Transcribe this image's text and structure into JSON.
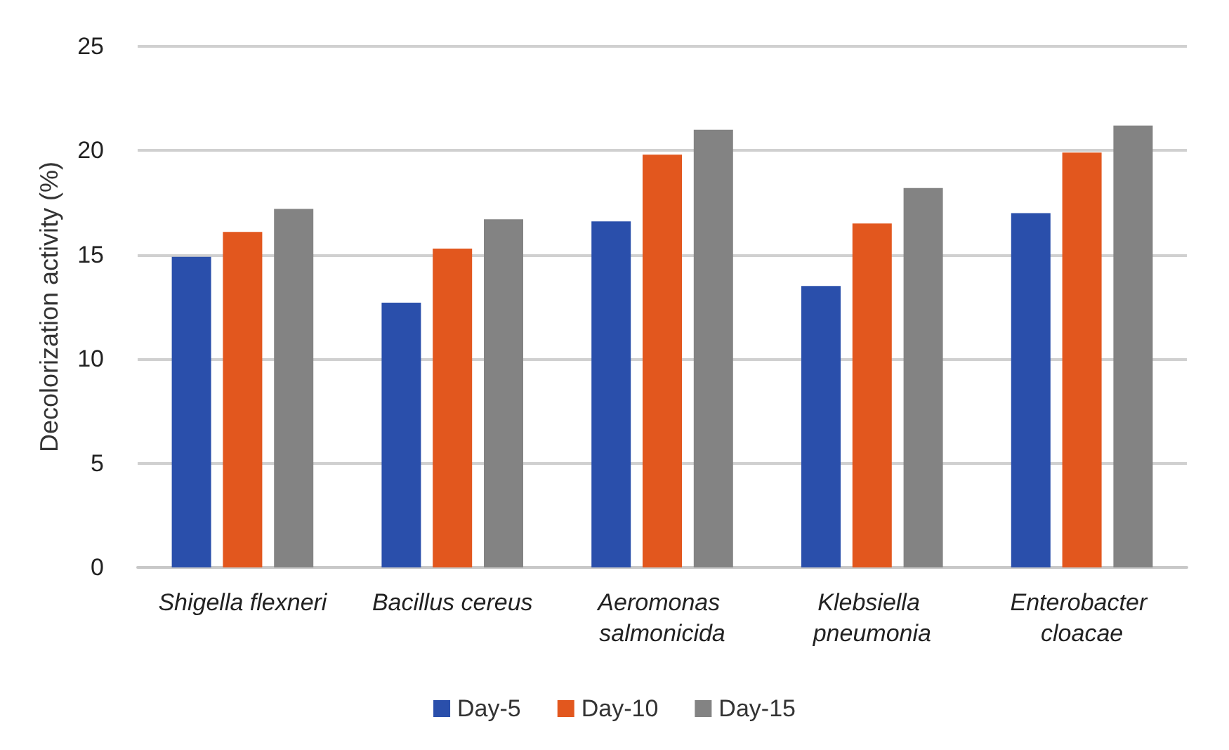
{
  "chart_data": {
    "type": "bar",
    "ylabel": "Decolorization activity (%)",
    "categories": [
      "Shigella flexneri",
      "Bacillus cereus",
      "Aeromonas salmonicida",
      "Klebsiella pneumonia",
      "Enterobacter cloacae"
    ],
    "series": [
      {
        "name": "Day-5",
        "color": "#2a4fab",
        "values": [
          14.9,
          12.7,
          16.6,
          13.5,
          17.0
        ]
      },
      {
        "name": "Day-10",
        "color": "#e2571e",
        "values": [
          16.1,
          15.3,
          19.8,
          16.5,
          19.9
        ]
      },
      {
        "name": "Day-15",
        "color": "#838383",
        "values": [
          17.2,
          16.7,
          21.0,
          18.2,
          21.2
        ]
      }
    ],
    "ylim": [
      0,
      25
    ],
    "yticks": [
      0,
      5,
      10,
      15,
      20,
      25
    ],
    "grid": "y",
    "legend": "bottom"
  }
}
